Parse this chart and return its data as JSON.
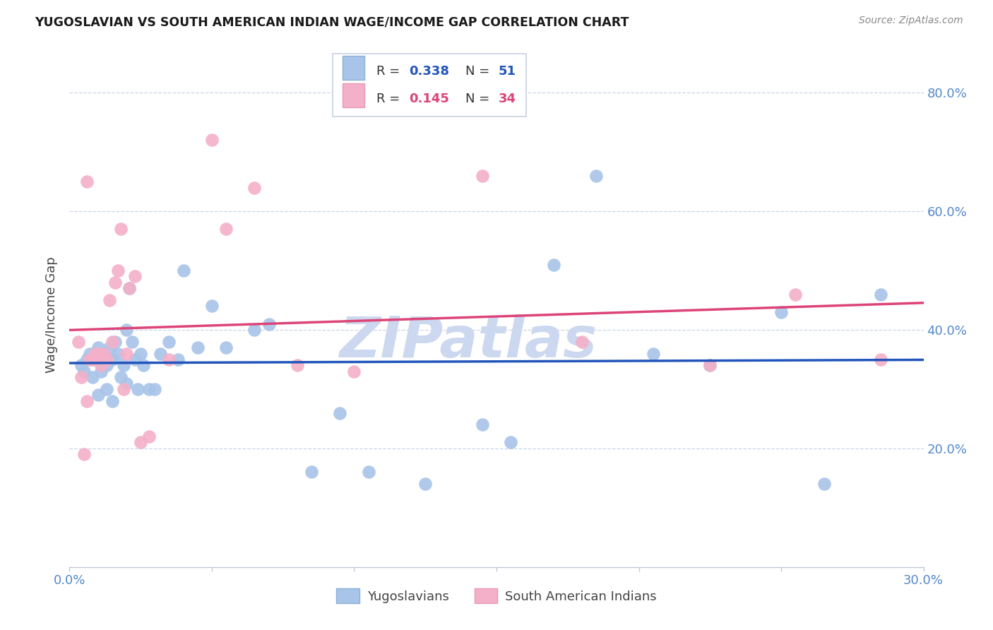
{
  "title": "YUGOSLAVIAN VS SOUTH AMERICAN INDIAN WAGE/INCOME GAP CORRELATION CHART",
  "source": "Source: ZipAtlas.com",
  "ylabel": "Wage/Income Gap",
  "xlim": [
    0.0,
    30.0
  ],
  "ylim": [
    0.0,
    85.0
  ],
  "yticks": [
    20.0,
    40.0,
    60.0,
    80.0
  ],
  "ytick_labels": [
    "20.0%",
    "40.0%",
    "60.0%",
    "80.0%"
  ],
  "xtick_positions": [
    0,
    5,
    10,
    15,
    20,
    25,
    30
  ],
  "blue_color": "#a8c4e8",
  "pink_color": "#f4b0c8",
  "blue_line_color": "#2255bb",
  "pink_line_color": "#dd4477",
  "legend_blue_R": "0.338",
  "legend_blue_N": "51",
  "legend_pink_R": "0.145",
  "legend_pink_N": "34",
  "watermark": "ZIPatlas",
  "watermark_color": "#ccd8ef",
  "background_color": "#ffffff",
  "blue_scatter_x": [
    0.4,
    0.5,
    0.6,
    0.7,
    0.8,
    0.9,
    1.0,
    1.0,
    1.1,
    1.2,
    1.3,
    1.4,
    1.5,
    1.6,
    1.7,
    1.8,
    1.9,
    2.0,
    2.1,
    2.2,
    2.3,
    2.5,
    2.6,
    2.8,
    3.0,
    3.2,
    3.5,
    4.0,
    4.5,
    5.5,
    6.5,
    7.0,
    8.5,
    9.5,
    10.5,
    12.5,
    14.5,
    15.5,
    17.0,
    18.5,
    20.5,
    22.5,
    25.0,
    26.5,
    28.5,
    1.3,
    2.4,
    3.8,
    5.0,
    1.5,
    2.0
  ],
  "blue_scatter_y": [
    34.0,
    33.0,
    35.0,
    36.0,
    32.0,
    35.0,
    37.0,
    29.0,
    33.0,
    36.0,
    34.0,
    37.0,
    35.0,
    38.0,
    36.0,
    32.0,
    34.0,
    40.0,
    47.0,
    38.0,
    35.0,
    36.0,
    34.0,
    30.0,
    30.0,
    36.0,
    38.0,
    50.0,
    37.0,
    37.0,
    40.0,
    41.0,
    16.0,
    26.0,
    16.0,
    14.0,
    24.0,
    21.0,
    51.0,
    66.0,
    36.0,
    34.0,
    43.0,
    14.0,
    46.0,
    30.0,
    30.0,
    35.0,
    44.0,
    28.0,
    31.0
  ],
  "pink_scatter_x": [
    0.3,
    0.5,
    0.6,
    0.7,
    0.8,
    0.9,
    1.0,
    1.1,
    1.2,
    1.3,
    1.4,
    1.5,
    1.6,
    1.7,
    1.8,
    2.0,
    2.1,
    2.3,
    2.8,
    3.5,
    5.0,
    5.5,
    6.5,
    8.0,
    10.0,
    14.5,
    18.0,
    22.5,
    25.5,
    28.5,
    0.4,
    0.6,
    1.9,
    2.5
  ],
  "pink_scatter_y": [
    38.0,
    19.0,
    65.0,
    35.0,
    35.0,
    36.0,
    36.0,
    34.0,
    36.0,
    35.0,
    45.0,
    38.0,
    48.0,
    50.0,
    57.0,
    36.0,
    47.0,
    49.0,
    22.0,
    35.0,
    72.0,
    57.0,
    64.0,
    34.0,
    33.0,
    66.0,
    38.0,
    34.0,
    46.0,
    35.0,
    32.0,
    28.0,
    30.0,
    21.0
  ]
}
